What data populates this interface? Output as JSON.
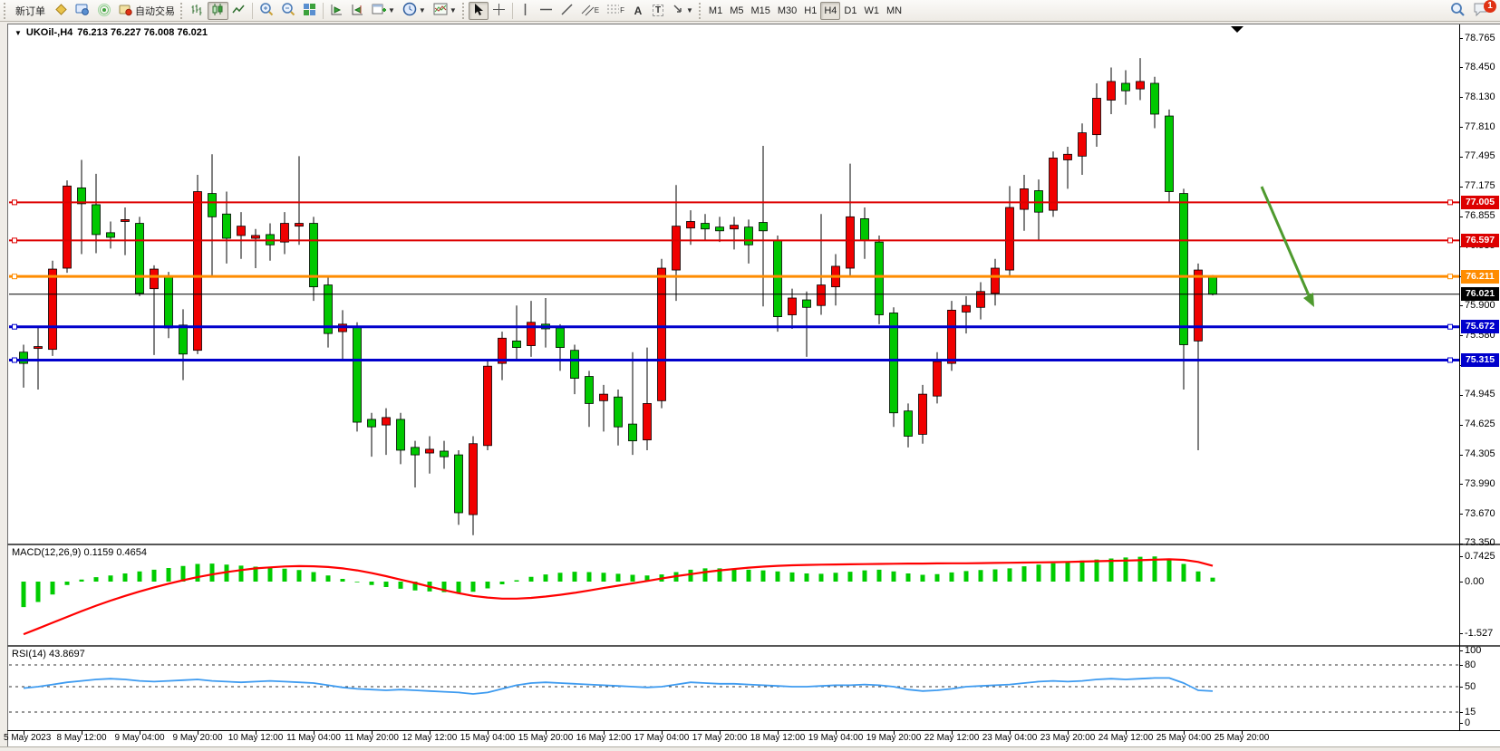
{
  "toolbar": {
    "new_order_label": "新订单",
    "auto_trading_label": "自动交易",
    "timeframes": [
      "M1",
      "M5",
      "M15",
      "M30",
      "H1",
      "H4",
      "D1",
      "W1",
      "MN"
    ],
    "active_timeframe": "H4",
    "notification_count": "1",
    "text_tool_glyph": "A",
    "label_tool_glyph": "T",
    "channel_glyph": "E",
    "fibo_glyph": "F"
  },
  "chart_data": {
    "type": "candlestick",
    "symbol": "UKOil-",
    "timeframe": "H4",
    "title": "UKOil-,H4",
    "ohlc_text": "76.213 76.227 76.008 76.021",
    "bull_color": "#f00000",
    "bear_color": "#00c800",
    "price_ticks": [
      "78.765",
      "78.450",
      "78.130",
      "77.810",
      "77.495",
      "77.175",
      "76.855",
      "76.535",
      "76.215",
      "75.900",
      "75.580",
      "75.265",
      "74.945",
      "74.625",
      "74.305",
      "73.990",
      "73.670",
      "73.350"
    ],
    "time_labels": [
      "5 May 2023",
      "8 May 12:00",
      "9 May 04:00",
      "9 May 20:00",
      "10 May 12:00",
      "11 May 04:00",
      "11 May 20:00",
      "12 May 12:00",
      "15 May 04:00",
      "15 May 20:00",
      "16 May 12:00",
      "17 May 04:00",
      "17 May 20:00",
      "18 May 12:00",
      "19 May 04:00",
      "19 May 20:00",
      "22 May 12:00",
      "23 May 04:00",
      "23 May 20:00",
      "24 May 12:00",
      "25 May 04:00",
      "25 May 20:00"
    ],
    "candles": [
      [
        75.4,
        75.48,
        75.02,
        75.28
      ],
      [
        75.44,
        75.66,
        75.0,
        75.46
      ],
      [
        75.43,
        76.38,
        75.36,
        76.29
      ],
      [
        76.3,
        77.24,
        76.25,
        77.18
      ],
      [
        77.16,
        77.46,
        76.45,
        76.99
      ],
      [
        76.98,
        77.31,
        76.46,
        76.66
      ],
      [
        76.68,
        76.8,
        76.51,
        76.63
      ],
      [
        76.8,
        76.95,
        76.44,
        76.82
      ],
      [
        76.78,
        76.85,
        76.0,
        76.03
      ],
      [
        76.08,
        76.33,
        75.37,
        76.29
      ],
      [
        76.21,
        76.26,
        75.55,
        75.66
      ],
      [
        75.69,
        75.86,
        75.1,
        75.38
      ],
      [
        75.42,
        77.3,
        75.38,
        77.12
      ],
      [
        77.1,
        77.52,
        76.2,
        76.85
      ],
      [
        76.88,
        77.12,
        76.35,
        76.62
      ],
      [
        76.65,
        76.9,
        76.4,
        76.75
      ],
      [
        76.62,
        76.72,
        76.3,
        76.65
      ],
      [
        76.66,
        76.78,
        76.38,
        76.55
      ],
      [
        76.58,
        76.9,
        76.45,
        76.78
      ],
      [
        76.75,
        77.5,
        76.55,
        76.78
      ],
      [
        76.78,
        76.85,
        75.95,
        76.1
      ],
      [
        76.12,
        76.2,
        75.45,
        75.6
      ],
      [
        75.62,
        75.85,
        75.3,
        75.7
      ],
      [
        75.68,
        75.72,
        74.55,
        74.65
      ],
      [
        74.68,
        74.75,
        74.28,
        74.6
      ],
      [
        74.62,
        74.8,
        74.3,
        74.7
      ],
      [
        74.68,
        74.75,
        74.2,
        74.35
      ],
      [
        74.38,
        74.45,
        73.95,
        74.3
      ],
      [
        74.32,
        74.5,
        74.1,
        74.36
      ],
      [
        74.34,
        74.45,
        74.15,
        74.28
      ],
      [
        74.3,
        74.35,
        73.55,
        73.68
      ],
      [
        73.66,
        74.5,
        73.44,
        74.42
      ],
      [
        74.4,
        75.3,
        74.35,
        75.25
      ],
      [
        75.28,
        75.62,
        75.1,
        75.55
      ],
      [
        75.52,
        75.9,
        75.3,
        75.45
      ],
      [
        75.47,
        75.95,
        75.35,
        75.72
      ],
      [
        75.7,
        75.98,
        75.45,
        75.65
      ],
      [
        75.66,
        75.7,
        75.2,
        75.45
      ],
      [
        75.42,
        75.48,
        74.95,
        75.12
      ],
      [
        75.14,
        75.2,
        74.6,
        74.85
      ],
      [
        74.88,
        75.05,
        74.55,
        74.95
      ],
      [
        74.92,
        75.0,
        74.4,
        74.6
      ],
      [
        74.63,
        75.4,
        74.3,
        74.45
      ],
      [
        74.46,
        75.45,
        74.35,
        74.85
      ],
      [
        74.88,
        76.4,
        74.8,
        76.3
      ],
      [
        76.28,
        77.19,
        75.95,
        76.75
      ],
      [
        76.73,
        76.92,
        76.55,
        76.8
      ],
      [
        76.78,
        76.88,
        76.6,
        76.72
      ],
      [
        76.74,
        76.85,
        76.58,
        76.7
      ],
      [
        76.72,
        76.85,
        76.5,
        76.76
      ],
      [
        76.74,
        76.82,
        76.35,
        76.55
      ],
      [
        76.79,
        77.61,
        75.89,
        76.7
      ],
      [
        76.6,
        76.65,
        75.62,
        75.78
      ],
      [
        75.8,
        76.08,
        75.65,
        75.98
      ],
      [
        75.96,
        76.05,
        75.35,
        75.88
      ],
      [
        75.9,
        76.88,
        75.8,
        76.12
      ],
      [
        76.1,
        76.45,
        75.9,
        76.32
      ],
      [
        76.3,
        77.42,
        76.2,
        76.85
      ],
      [
        76.83,
        76.95,
        76.4,
        76.6
      ],
      [
        76.58,
        76.65,
        75.7,
        75.8
      ],
      [
        75.82,
        75.88,
        74.6,
        74.75
      ],
      [
        74.77,
        74.85,
        74.38,
        74.5
      ],
      [
        74.52,
        75.05,
        74.42,
        74.95
      ],
      [
        74.93,
        75.4,
        74.85,
        75.3
      ],
      [
        75.28,
        75.95,
        75.2,
        75.85
      ],
      [
        75.83,
        76.0,
        75.6,
        75.9
      ],
      [
        75.88,
        76.15,
        75.75,
        76.05
      ],
      [
        76.03,
        76.4,
        75.9,
        76.3
      ],
      [
        76.28,
        77.18,
        76.2,
        76.95
      ],
      [
        76.93,
        77.3,
        76.7,
        77.15
      ],
      [
        77.13,
        77.25,
        76.6,
        76.9
      ],
      [
        76.92,
        77.55,
        76.85,
        77.48
      ],
      [
        77.46,
        77.6,
        77.15,
        77.52
      ],
      [
        77.5,
        77.85,
        77.3,
        77.75
      ],
      [
        77.73,
        78.28,
        77.6,
        78.12
      ],
      [
        78.1,
        78.45,
        77.95,
        78.3
      ],
      [
        78.28,
        78.42,
        78.05,
        78.2
      ],
      [
        78.22,
        78.55,
        78.1,
        78.3
      ],
      [
        78.28,
        78.35,
        77.8,
        77.95
      ],
      [
        77.93,
        78.0,
        77.0,
        77.12
      ],
      [
        77.1,
        77.15,
        75.0,
        75.48
      ],
      [
        75.52,
        76.35,
        74.35,
        76.28
      ],
      [
        76.213,
        76.227,
        76.008,
        76.021
      ]
    ],
    "horizontal_lines": [
      {
        "price": 77.005,
        "label": "77.005",
        "color": "#dd0000",
        "width": 2
      },
      {
        "price": 76.597,
        "label": "76.597",
        "color": "#dd0000",
        "width": 2
      },
      {
        "price": 76.211,
        "label": "76.211",
        "color": "#ff8c00",
        "width": 3
      },
      {
        "price": 75.672,
        "label": "75.672",
        "color": "#0000cc",
        "width": 3
      },
      {
        "price": 75.315,
        "label": "75.315",
        "color": "#0000cc",
        "width": 3
      }
    ],
    "price_line": {
      "price": 76.021,
      "label": "76.021",
      "color": "#000000"
    },
    "macd": {
      "label": "MACD(12,26,9)",
      "main_value": "0.1159",
      "signal_value": "0.4654",
      "scale": [
        "0.7425",
        "0.00",
        "-1.527"
      ],
      "hist_color": "#00cc00",
      "signal_color": "#ff0000",
      "histogram": [
        -0.75,
        -0.6,
        -0.38,
        -0.1,
        0.06,
        0.13,
        0.18,
        0.24,
        0.3,
        0.35,
        0.4,
        0.46,
        0.52,
        0.53,
        0.5,
        0.47,
        0.44,
        0.41,
        0.38,
        0.34,
        0.28,
        0.18,
        0.08,
        -0.02,
        -0.1,
        -0.16,
        -0.21,
        -0.26,
        -0.29,
        -0.31,
        -0.32,
        -0.3,
        -0.2,
        -0.08,
        0.04,
        0.14,
        0.21,
        0.26,
        0.29,
        0.28,
        0.26,
        0.23,
        0.2,
        0.18,
        0.21,
        0.28,
        0.35,
        0.39,
        0.39,
        0.37,
        0.35,
        0.33,
        0.3,
        0.27,
        0.24,
        0.23,
        0.26,
        0.29,
        0.33,
        0.35,
        0.3,
        0.24,
        0.2,
        0.22,
        0.27,
        0.31,
        0.34,
        0.36,
        0.39,
        0.45,
        0.5,
        0.54,
        0.58,
        0.62,
        0.65,
        0.68,
        0.71,
        0.73,
        0.74,
        0.68,
        0.52,
        0.3,
        0.116
      ],
      "signal": [
        -1.55,
        -1.38,
        -1.21,
        -1.04,
        -0.87,
        -0.71,
        -0.56,
        -0.42,
        -0.29,
        -0.17,
        -0.06,
        0.04,
        0.13,
        0.21,
        0.28,
        0.34,
        0.39,
        0.42,
        0.445,
        0.455,
        0.45,
        0.43,
        0.39,
        0.33,
        0.25,
        0.16,
        0.06,
        -0.04,
        -0.15,
        -0.25,
        -0.34,
        -0.42,
        -0.47,
        -0.5,
        -0.5,
        -0.48,
        -0.44,
        -0.39,
        -0.33,
        -0.26,
        -0.19,
        -0.12,
        -0.05,
        0.02,
        0.09,
        0.16,
        0.22,
        0.28,
        0.33,
        0.37,
        0.41,
        0.44,
        0.465,
        0.48,
        0.49,
        0.5,
        0.505,
        0.51,
        0.515,
        0.52,
        0.525,
        0.53,
        0.53,
        0.535,
        0.54,
        0.54,
        0.545,
        0.55,
        0.555,
        0.56,
        0.565,
        0.57,
        0.58,
        0.59,
        0.6,
        0.61,
        0.62,
        0.63,
        0.645,
        0.655,
        0.64,
        0.58,
        0.465
      ]
    },
    "rsi": {
      "label": "RSI(14)",
      "value": "43.8697",
      "scale": [
        "100",
        "80",
        "50",
        "15",
        "0"
      ],
      "levels": [
        80,
        50,
        15
      ],
      "color": "#3e9bf0",
      "series": [
        48,
        50,
        53,
        56,
        58,
        60,
        61,
        60,
        58,
        57,
        58,
        59,
        60,
        58,
        57,
        56,
        57,
        58,
        57,
        56,
        55,
        52,
        49,
        47,
        46,
        45,
        46,
        45,
        44,
        43,
        42,
        40,
        42,
        47,
        52,
        55,
        56,
        55,
        54,
        53,
        52,
        51,
        50,
        49,
        50,
        53,
        56,
        55,
        54,
        54,
        53,
        52,
        51,
        50,
        50,
        51,
        52,
        52,
        53,
        52,
        50,
        46,
        44,
        45,
        47,
        50,
        51,
        52,
        53,
        55,
        57,
        58,
        57,
        58,
        60,
        61,
        60,
        61,
        62,
        62,
        55,
        45,
        43.87
      ]
    },
    "annotation_arrow": {
      "color": "#4e9a2e"
    },
    "marker_color": "#000000"
  }
}
